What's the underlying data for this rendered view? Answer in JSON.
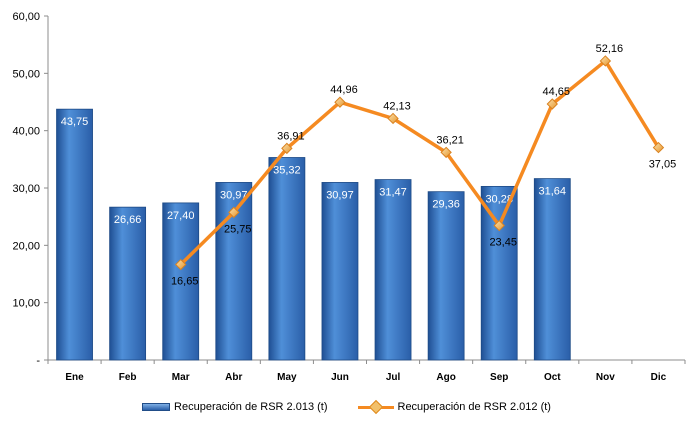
{
  "chart_data": {
    "type": "bar",
    "categories": [
      "Ene",
      "Feb",
      "Mar",
      "Abr",
      "May",
      "Jun",
      "Jul",
      "Ago",
      "Sep",
      "Oct",
      "Nov",
      "Dic"
    ],
    "series": [
      {
        "name": "Recuperación de RSR 2.013 (t)",
        "kind": "bar",
        "values": [
          43.75,
          26.66,
          27.4,
          30.97,
          35.32,
          30.97,
          31.47,
          29.36,
          30.28,
          31.64,
          null,
          null
        ],
        "labels": [
          "43,75",
          "26,66",
          "27,40",
          "30,97",
          "35,32",
          "30,97",
          "31,47",
          "29,36",
          "30,28",
          "31,64",
          "",
          ""
        ],
        "color": "#2f6bb7"
      },
      {
        "name": "Recuperación de RSR 2.012 (t)",
        "kind": "line",
        "values": [
          null,
          null,
          16.65,
          25.75,
          36.91,
          44.96,
          42.13,
          36.21,
          23.45,
          44.65,
          52.16,
          37.05
        ],
        "labels": [
          "",
          "",
          "16,65",
          "25,75",
          "36,91",
          "44,96",
          "42,13",
          "36,21",
          "23,45",
          "44,65",
          "52,16",
          "37,05"
        ],
        "color": "#f58a21"
      }
    ],
    "yticks": [
      "-",
      "10,00",
      "20,00",
      "30,00",
      "40,00",
      "50,00",
      "60,00"
    ],
    "ylim": [
      0,
      60
    ],
    "legend_position": "bottom",
    "grid": false
  }
}
